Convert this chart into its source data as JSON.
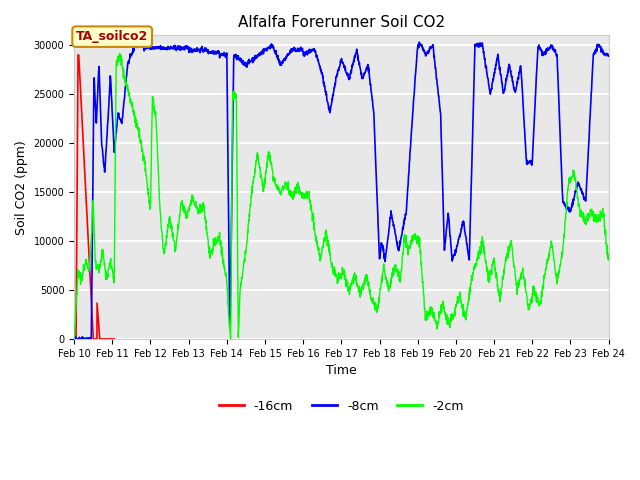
{
  "title": "Alfalfa Forerunner Soil CO2",
  "xlabel": "Time",
  "ylabel": "Soil CO2 (ppm)",
  "ylim": [
    0,
    31000
  ],
  "yticks": [
    0,
    5000,
    10000,
    15000,
    20000,
    25000,
    30000
  ],
  "plot_bg_color": "#e8e8e8",
  "grid_color": "white",
  "annotation_text": "TA_soilco2",
  "annotation_bg": "#ffffcc",
  "annotation_border": "#cc8800",
  "annotation_text_color": "#aa0000",
  "x_start_days": 10.0,
  "x_end_days": 24.0,
  "xtick_positions": [
    10,
    11,
    12,
    13,
    14,
    15,
    16,
    17,
    18,
    19,
    20,
    21,
    22,
    23,
    24
  ],
  "xtick_labels": [
    "Feb 10",
    "Feb 11",
    "Feb 12",
    "Feb 13",
    "Feb 14",
    "Feb 15",
    "Feb 16",
    "Feb 17",
    "Feb 18",
    "Feb 19",
    "Feb 20",
    "Feb 21",
    "Feb 22",
    "Feb 23",
    "Feb 24"
  ]
}
